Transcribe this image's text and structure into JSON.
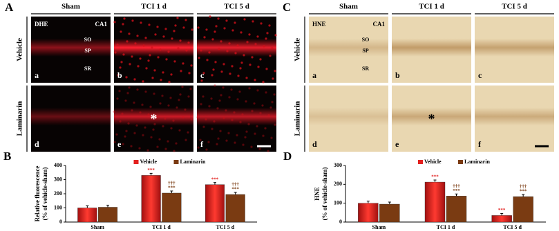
{
  "panels": [
    {
      "letter": "A",
      "columns": [
        "Sham",
        "TCI 1 d",
        "TCI 5 d"
      ],
      "rows": [
        "Vehicle",
        "Laminarin"
      ],
      "stain": "DHE",
      "region": "CA1",
      "layers": [
        "SO",
        "SP",
        "SR"
      ],
      "sublabels": [
        "a",
        "b",
        "c",
        "d",
        "e",
        "f"
      ],
      "marker": "*"
    },
    {
      "letter": "C",
      "columns": [
        "Sham",
        "TCI 1 d",
        "TCI 5 d"
      ],
      "rows": [
        "Vehicle",
        "Laminarin"
      ],
      "stain": "HNE",
      "region": "CA1",
      "layers": [
        "SO",
        "SP",
        "SR"
      ],
      "sublabels": [
        "a",
        "b",
        "c",
        "d",
        "e",
        "f"
      ],
      "marker": "*"
    }
  ],
  "chart_data": [
    {
      "letter": "B",
      "type": "bar",
      "y_label": [
        "Relative fluorescence",
        "(% of vehicle-sham)"
      ],
      "categories": [
        "Sham",
        "TCI 1 d",
        "TCI 5 d"
      ],
      "series": [
        {
          "name": "Vehicle",
          "color": "#e3211f",
          "values": [
            100,
            330,
            265
          ],
          "significance_vs_sham": [
            null,
            "***",
            "***"
          ]
        },
        {
          "name": "Laminarin",
          "color": "#7a3b12",
          "values": [
            105,
            205,
            195
          ],
          "significance_vs_sham": [
            null,
            "***",
            "***"
          ],
          "significance_vs_vehicle": [
            null,
            "†††",
            "†††"
          ]
        }
      ],
      "ylim": [
        0,
        400
      ],
      "yticks": [
        0,
        100,
        200,
        300,
        400
      ]
    },
    {
      "letter": "D",
      "type": "bar",
      "y_label": [
        "HNE",
        "(% of vehicle-sham)"
      ],
      "categories": [
        "Sham",
        "TCI 1 d",
        "TCI 5 d"
      ],
      "series": [
        {
          "name": "Vehicle",
          "color": "#e3211f",
          "values": [
            100,
            212,
            35
          ],
          "significance_vs_sham": [
            null,
            "***",
            "***"
          ]
        },
        {
          "name": "Laminarin",
          "color": "#7a3b12",
          "values": [
            95,
            138,
            135
          ],
          "significance_vs_sham": [
            null,
            "***",
            "***"
          ],
          "significance_vs_vehicle": [
            null,
            "†††",
            "†††"
          ]
        }
      ],
      "ylim": [
        0,
        300
      ],
      "yticks": [
        0,
        100,
        200,
        300
      ]
    }
  ]
}
